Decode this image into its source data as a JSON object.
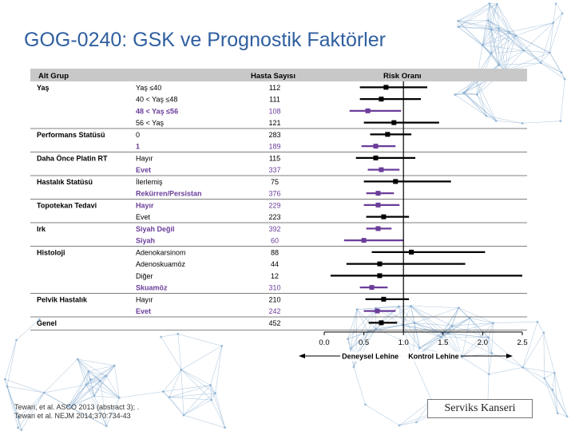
{
  "title": "GOG-0240: GSK ve Prognostik Faktörler",
  "references": [
    "Tewari, et al. ASCO 2013 (abstract 3); .",
    "Tewari et al. NEJM 2014;370:734-43"
  ],
  "footer_label": "Serviks Kanseri",
  "colors": {
    "title": "#2f5f9f",
    "black_series": "#000000",
    "purple_series": "#6a3d9a",
    "header_bg": "#c8c8c8",
    "network_lines": "#7fa7cc"
  },
  "chart_data": {
    "type": "forest",
    "headers": {
      "group": "Alt Grup",
      "count": "Hasta Sayısı",
      "risk": "Risk Oranı"
    },
    "xlim": [
      0.0,
      2.5
    ],
    "reference_line": 1.0,
    "xticks": [
      "0.0",
      "0.5",
      "1.0",
      "1.5",
      "2.0",
      "2.5"
    ],
    "xaxis_left_label": "Deneysel Lehine",
    "xaxis_right_label": "Kontrol Lehine",
    "rows": [
      {
        "group": "Yaş",
        "sub": "Yaş ≤40",
        "n": "112",
        "hr": 0.78,
        "lo": 0.45,
        "hi": 1.3,
        "color": "black"
      },
      {
        "group": "",
        "sub": "40 < Yaş ≤48",
        "n": "111",
        "hr": 0.72,
        "lo": 0.45,
        "hi": 1.22,
        "color": "black"
      },
      {
        "group": "",
        "sub": "48 < Yaş ≤56",
        "n": "108",
        "hr": 0.55,
        "lo": 0.32,
        "hi": 0.97,
        "color": "purple"
      },
      {
        "group": "",
        "sub": "56 < Yaş",
        "n": "121",
        "hr": 0.88,
        "lo": 0.5,
        "hi": 1.45,
        "color": "black"
      },
      {
        "group": "Performans Statüsü",
        "sub": "0",
        "n": "283",
        "hr": 0.8,
        "lo": 0.58,
        "hi": 1.1,
        "color": "black"
      },
      {
        "group": "",
        "sub": "1",
        "n": "189",
        "hr": 0.65,
        "lo": 0.47,
        "hi": 0.9,
        "color": "purple"
      },
      {
        "group": "Daha Önce Platin RT",
        "sub": "Hayır",
        "n": "115",
        "hr": 0.65,
        "lo": 0.4,
        "hi": 1.15,
        "color": "black"
      },
      {
        "group": "",
        "sub": "Evet",
        "n": "337",
        "hr": 0.72,
        "lo": 0.55,
        "hi": 0.95,
        "color": "purple"
      },
      {
        "group": "Hastalık Statüsü",
        "sub": "İlerlemiş",
        "n": "75",
        "hr": 0.9,
        "lo": 0.5,
        "hi": 1.6,
        "color": "black"
      },
      {
        "group": "",
        "sub": "Rekürren/Persistan",
        "n": "376",
        "hr": 0.68,
        "lo": 0.53,
        "hi": 0.88,
        "color": "purple"
      },
      {
        "group": "Topotekan Tedavi",
        "sub": "Hayır",
        "n": "229",
        "hr": 0.68,
        "lo": 0.5,
        "hi": 0.95,
        "color": "purple"
      },
      {
        "group": "",
        "sub": "Evet",
        "n": "223",
        "hr": 0.75,
        "lo": 0.53,
        "hi": 1.07,
        "color": "black"
      },
      {
        "group": "Irk",
        "sub": "Siyah Değil",
        "n": "392",
        "hr": 0.68,
        "lo": 0.53,
        "hi": 0.85,
        "color": "purple"
      },
      {
        "group": "",
        "sub": "Siyah",
        "n": "60",
        "hr": 0.5,
        "lo": 0.25,
        "hi": 1.0,
        "color": "purple"
      },
      {
        "group": "Histoloji",
        "sub": "Adenokarsinom",
        "n": "88",
        "hr": 1.1,
        "lo": 0.6,
        "hi": 2.03,
        "color": "black"
      },
      {
        "group": "",
        "sub": "Adenoskuamöz",
        "n": "44",
        "hr": 0.7,
        "lo": 0.28,
        "hi": 1.78,
        "color": "black"
      },
      {
        "group": "",
        "sub": "Diğer",
        "n": "12",
        "hr": 0.7,
        "lo": 0.08,
        "hi": 2.5,
        "color": "black"
      },
      {
        "group": "",
        "sub": "Skuamöz",
        "n": "310",
        "hr": 0.6,
        "lo": 0.45,
        "hi": 0.8,
        "color": "purple"
      },
      {
        "group": "Pelvik Hastalık",
        "sub": "Hayır",
        "n": "210",
        "hr": 0.75,
        "lo": 0.52,
        "hi": 1.07,
        "color": "black"
      },
      {
        "group": "",
        "sub": "Evet",
        "n": "242",
        "hr": 0.67,
        "lo": 0.5,
        "hi": 0.9,
        "color": "purple"
      },
      {
        "group": "Genel",
        "sub": "",
        "n": "452",
        "hr": 0.72,
        "lo": 0.56,
        "hi": 0.92,
        "color": "black"
      }
    ]
  }
}
